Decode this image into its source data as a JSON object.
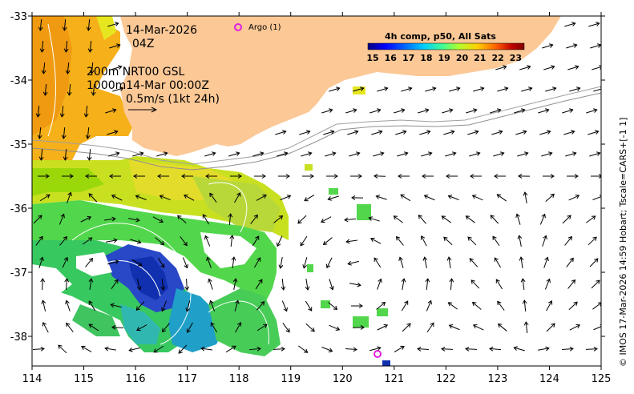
{
  "map": {
    "date_line1": "14-Mar-2026",
    "date_line2": "04Z",
    "depth_line1": "200m  NRT00 GSL",
    "depth_line2": "1000m14-Mar 00:00Z",
    "speed_scale": "0.5m/s (1kt 24h)",
    "argo_label": "Argo (1)",
    "credit": "© IMOS 17-Mar-2026 14:59 Hobart; Tscale=CARS+[-1 1]",
    "x_ticks": [
      "114",
      "115",
      "116",
      "117",
      "118",
      "119",
      "120",
      "121",
      "122",
      "123",
      "124",
      "125"
    ],
    "y_ticks": [
      "-33",
      "-34",
      "-35",
      "-36",
      "-37",
      "-38"
    ],
    "land_color": "#fbc896",
    "argo_color": "#e020e0"
  },
  "colorbar": {
    "title": "4h comp, p50, All Sats",
    "labels": [
      "15",
      "16",
      "17",
      "18",
      "19",
      "20",
      "21",
      "22",
      "23"
    ],
    "colors": [
      "#00007f",
      "#0000ff",
      "#0070ff",
      "#00d0ff",
      "#40ff90",
      "#b0ff30",
      "#ffd000",
      "#ff6000",
      "#c00000",
      "#800000"
    ]
  }
}
